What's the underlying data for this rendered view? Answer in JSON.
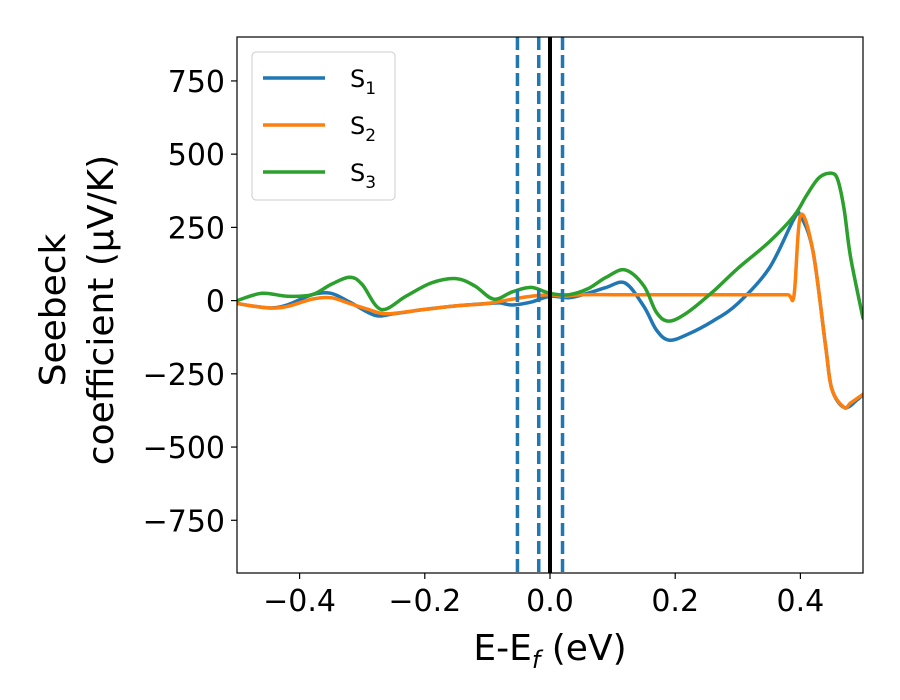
{
  "chart_data": {
    "type": "line",
    "title": "",
    "xlabel": "E-E",
    "xlabel_sub": "f",
    "xlabel_unit": " (eV)",
    "ylabel_line1": "Seebeck",
    "ylabel_line2": "coefficient  (μV/K)",
    "xlim": [
      -0.5,
      0.5
    ],
    "ylim": [
      -930,
      900
    ],
    "xticks": [
      -0.4,
      -0.2,
      0.0,
      0.2,
      0.4
    ],
    "xtick_labels": [
      "−0.4",
      "−0.2",
      "0.0",
      "0.2",
      "0.4"
    ],
    "yticks": [
      750,
      500,
      250,
      0,
      -250,
      -500,
      -750
    ],
    "ytick_labels": [
      "750",
      "500",
      "250",
      "0",
      "−250",
      "−500",
      "−750"
    ],
    "grid": false,
    "legend_position": "top-left",
    "vlines": [
      {
        "x": -0.052,
        "style": "dashed",
        "color": "#1f77b4"
      },
      {
        "x": -0.018,
        "style": "dashed",
        "color": "#1f77b4"
      },
      {
        "x": 0.02,
        "style": "dashed",
        "color": "#1f77b4"
      },
      {
        "x": 0.0,
        "style": "solid",
        "color": "#000000"
      }
    ],
    "series": [
      {
        "name": "S",
        "sub": "1",
        "color": "#1f77b4",
        "x": [
          -0.5,
          -0.45,
          -0.42,
          -0.38,
          -0.35,
          -0.32,
          -0.28,
          -0.25,
          -0.2,
          -0.15,
          -0.1,
          -0.08,
          -0.06,
          -0.03,
          0.0,
          0.03,
          0.06,
          0.09,
          0.12,
          0.15,
          0.17,
          0.19,
          0.22,
          0.26,
          0.3,
          0.35,
          0.39,
          0.4,
          0.42,
          0.44,
          0.45,
          0.47,
          0.49,
          0.5
        ],
        "y": [
          -10,
          -25,
          -15,
          20,
          25,
          -5,
          -50,
          -45,
          -30,
          -18,
          -10,
          -8,
          -15,
          -5,
          15,
          10,
          25,
          45,
          60,
          -20,
          -100,
          -135,
          -115,
          -70,
          -10,
          110,
          280,
          290,
          170,
          -150,
          -300,
          -365,
          -340,
          -320
        ]
      },
      {
        "name": "S",
        "sub": "2",
        "color": "#ff7f0e",
        "x": [
          -0.5,
          -0.45,
          -0.42,
          -0.38,
          -0.35,
          -0.32,
          -0.29,
          -0.26,
          -0.2,
          -0.15,
          -0.1,
          -0.06,
          -0.03,
          0.0,
          0.02,
          0.05,
          0.1,
          0.15,
          0.2,
          0.25,
          0.3,
          0.35,
          0.38,
          0.39,
          0.4,
          0.42,
          0.44,
          0.45,
          0.47,
          0.48,
          0.5
        ],
        "y": [
          -10,
          -25,
          -20,
          5,
          10,
          -10,
          -30,
          -45,
          -30,
          -18,
          -10,
          5,
          15,
          20,
          15,
          20,
          20,
          20,
          20,
          20,
          20,
          20,
          20,
          20,
          290,
          170,
          -150,
          -300,
          -365,
          -350,
          -320
        ]
      },
      {
        "name": "S",
        "sub": "3",
        "color": "#2ca02c",
        "x": [
          -0.5,
          -0.46,
          -0.42,
          -0.38,
          -0.35,
          -0.32,
          -0.3,
          -0.27,
          -0.23,
          -0.19,
          -0.15,
          -0.12,
          -0.09,
          -0.06,
          -0.03,
          0.0,
          0.03,
          0.06,
          0.09,
          0.12,
          0.15,
          0.17,
          0.19,
          0.22,
          0.26,
          0.3,
          0.35,
          0.39,
          0.41,
          0.43,
          0.45,
          0.46,
          0.47,
          0.48,
          0.5
        ],
        "y": [
          0,
          25,
          15,
          20,
          55,
          80,
          55,
          -30,
          15,
          60,
          75,
          50,
          5,
          30,
          45,
          25,
          20,
          40,
          80,
          105,
          50,
          -40,
          -70,
          -40,
          30,
          110,
          200,
          290,
          360,
          420,
          435,
          410,
          310,
          150,
          -60
        ]
      }
    ]
  }
}
